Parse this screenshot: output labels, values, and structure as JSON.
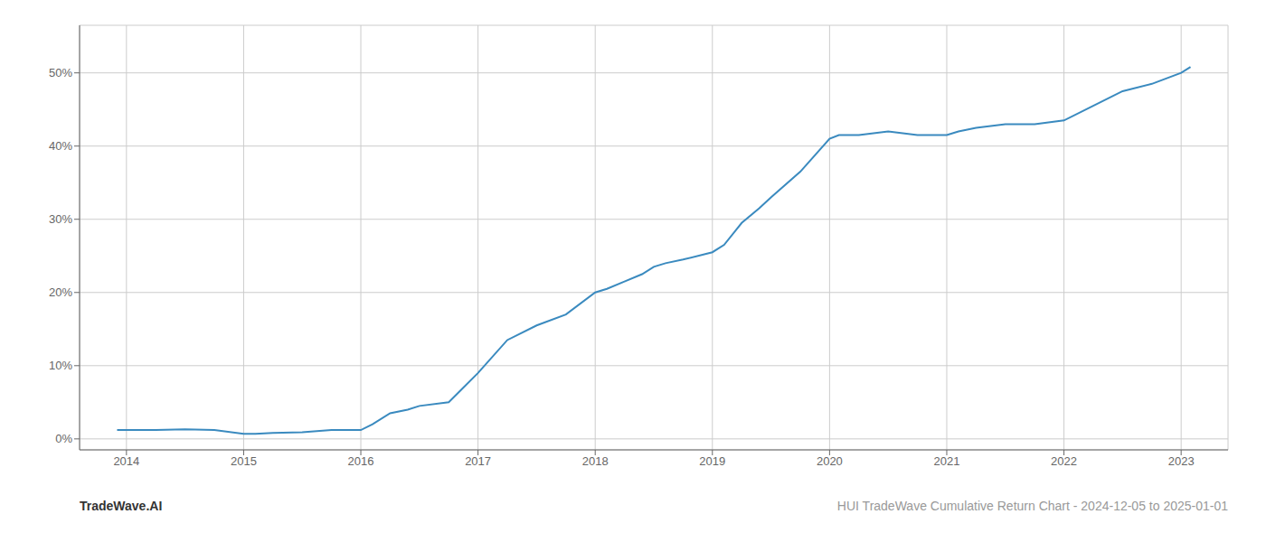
{
  "chart_data": {
    "type": "line",
    "annotations": [
      "TradeWave.AI",
      "HUI TradeWave Cumulative Return Chart - 2024-12-05 to 2025-01-01"
    ],
    "x": [
      2013.92,
      2014.0,
      2014.25,
      2014.5,
      2014.75,
      2015.0,
      2015.1,
      2015.25,
      2015.5,
      2015.75,
      2016.0,
      2016.1,
      2016.25,
      2016.4,
      2016.5,
      2016.75,
      2017.0,
      2017.25,
      2017.5,
      2017.75,
      2018.0,
      2018.1,
      2018.25,
      2018.4,
      2018.5,
      2018.6,
      2018.75,
      2019.0,
      2019.1,
      2019.25,
      2019.4,
      2019.5,
      2019.75,
      2020.0,
      2020.08,
      2020.25,
      2020.5,
      2020.75,
      2021.0,
      2021.1,
      2021.25,
      2021.5,
      2021.75,
      2022.0,
      2022.25,
      2022.5,
      2022.75,
      2023.0,
      2023.08
    ],
    "values": [
      0.012,
      0.012,
      0.012,
      0.013,
      0.012,
      0.007,
      0.007,
      0.008,
      0.009,
      0.012,
      0.012,
      0.02,
      0.035,
      0.04,
      0.045,
      0.05,
      0.09,
      0.135,
      0.155,
      0.17,
      0.2,
      0.205,
      0.215,
      0.225,
      0.235,
      0.24,
      0.245,
      0.255,
      0.265,
      0.295,
      0.315,
      0.33,
      0.365,
      0.41,
      0.415,
      0.415,
      0.42,
      0.415,
      0.415,
      0.42,
      0.425,
      0.43,
      0.43,
      0.435,
      0.455,
      0.475,
      0.485,
      0.5,
      0.508
    ],
    "color": "#3a8abf",
    "xlim": [
      2013.6,
      2023.4
    ],
    "ylim": [
      -0.015,
      0.565
    ],
    "xticks": [
      2014,
      2015,
      2016,
      2017,
      2018,
      2019,
      2020,
      2021,
      2022,
      2023
    ],
    "yticks": [
      {
        "value": 0.0,
        "label": "0%"
      },
      {
        "value": 0.1,
        "label": "10%"
      },
      {
        "value": 0.2,
        "label": "20%"
      },
      {
        "value": 0.3,
        "label": "30%"
      },
      {
        "value": 0.4,
        "label": "40%"
      },
      {
        "value": 0.5,
        "label": "50%"
      }
    ],
    "grid": true
  }
}
